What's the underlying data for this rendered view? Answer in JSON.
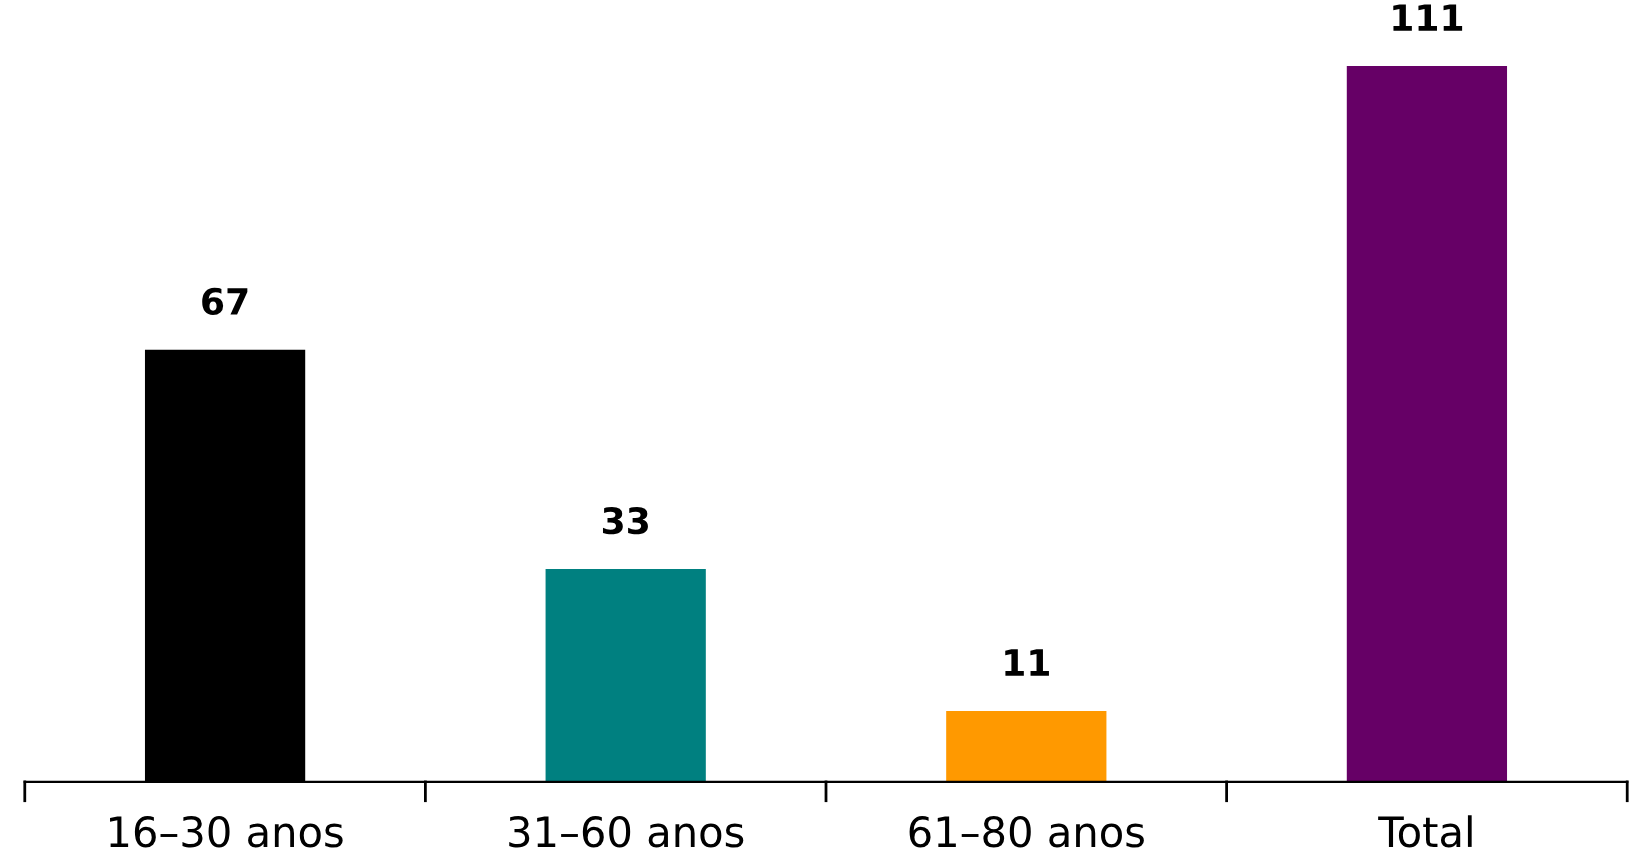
{
  "chart_data": {
    "type": "bar",
    "categories": [
      "16–30 anos",
      "31–60 anos",
      "61–80 anos",
      "Total"
    ],
    "values": [
      67,
      33,
      11,
      111
    ],
    "colors": [
      "#000000",
      "#008080",
      "#ff9900",
      "#660066"
    ],
    "data_labels": true,
    "grid": false,
    "legend": false
  }
}
